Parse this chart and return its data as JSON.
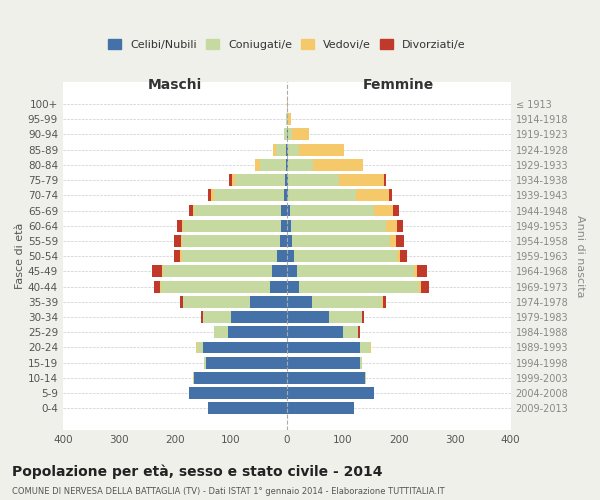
{
  "age_groups": [
    "0-4",
    "5-9",
    "10-14",
    "15-19",
    "20-24",
    "25-29",
    "30-34",
    "35-39",
    "40-44",
    "45-49",
    "50-54",
    "55-59",
    "60-64",
    "65-69",
    "70-74",
    "75-79",
    "80-84",
    "85-89",
    "90-94",
    "95-99",
    "100+"
  ],
  "birth_years": [
    "2009-2013",
    "2004-2008",
    "1999-2003",
    "1994-1998",
    "1989-1993",
    "1984-1988",
    "1979-1983",
    "1974-1978",
    "1969-1973",
    "1964-1968",
    "1959-1963",
    "1954-1958",
    "1949-1953",
    "1944-1948",
    "1939-1943",
    "1934-1938",
    "1929-1933",
    "1924-1928",
    "1919-1923",
    "1914-1918",
    "≤ 1913"
  ],
  "males": {
    "celibi": [
      140,
      175,
      165,
      145,
      150,
      105,
      100,
      65,
      30,
      26,
      18,
      12,
      10,
      10,
      5,
      3,
      2,
      2,
      0,
      0,
      0
    ],
    "coniugati": [
      0,
      0,
      2,
      3,
      10,
      25,
      50,
      120,
      195,
      195,
      170,
      175,
      175,
      155,
      125,
      90,
      45,
      18,
      5,
      2,
      0
    ],
    "vedovi": [
      0,
      0,
      0,
      0,
      2,
      0,
      0,
      0,
      2,
      2,
      2,
      2,
      2,
      2,
      5,
      5,
      10,
      5,
      0,
      0,
      0
    ],
    "divorziati": [
      0,
      0,
      0,
      0,
      0,
      0,
      3,
      5,
      10,
      18,
      12,
      12,
      10,
      8,
      5,
      5,
      0,
      0,
      0,
      0,
      0
    ]
  },
  "females": {
    "nubili": [
      120,
      155,
      140,
      130,
      130,
      100,
      75,
      45,
      22,
      18,
      12,
      10,
      8,
      5,
      3,
      3,
      2,
      2,
      2,
      0,
      0
    ],
    "coniugate": [
      0,
      0,
      2,
      5,
      18,
      28,
      60,
      125,
      215,
      210,
      185,
      175,
      170,
      150,
      120,
      90,
      45,
      20,
      8,
      2,
      0
    ],
    "vedove": [
      0,
      0,
      0,
      0,
      2,
      0,
      0,
      2,
      2,
      5,
      5,
      10,
      18,
      35,
      60,
      80,
      90,
      80,
      30,
      5,
      2
    ],
    "divorziate": [
      0,
      0,
      0,
      0,
      0,
      2,
      3,
      5,
      15,
      18,
      12,
      15,
      12,
      10,
      5,
      5,
      0,
      0,
      0,
      0,
      0
    ]
  },
  "colors": {
    "celibi_nubili": "#4472a8",
    "coniugati": "#c5d9a0",
    "vedovi": "#f5c96a",
    "divorziati": "#c0392b"
  },
  "xlim": 400,
  "title": "Popolazione per età, sesso e stato civile - 2014",
  "subtitle": "COMUNE DI NERVESA DELLA BATTAGLIA (TV) - Dati ISTAT 1° gennaio 2014 - Elaborazione TUTTITALIA.IT",
  "ylabel_left": "Fasce di età",
  "ylabel_right": "Anni di nascita",
  "xlabel_left": "Maschi",
  "xlabel_right": "Femmine",
  "legend_labels": [
    "Celibi/Nubili",
    "Coniugati/e",
    "Vedovi/e",
    "Divorziati/e"
  ],
  "bg_color": "#f0f0eb",
  "plot_bg_color": "#ffffff"
}
